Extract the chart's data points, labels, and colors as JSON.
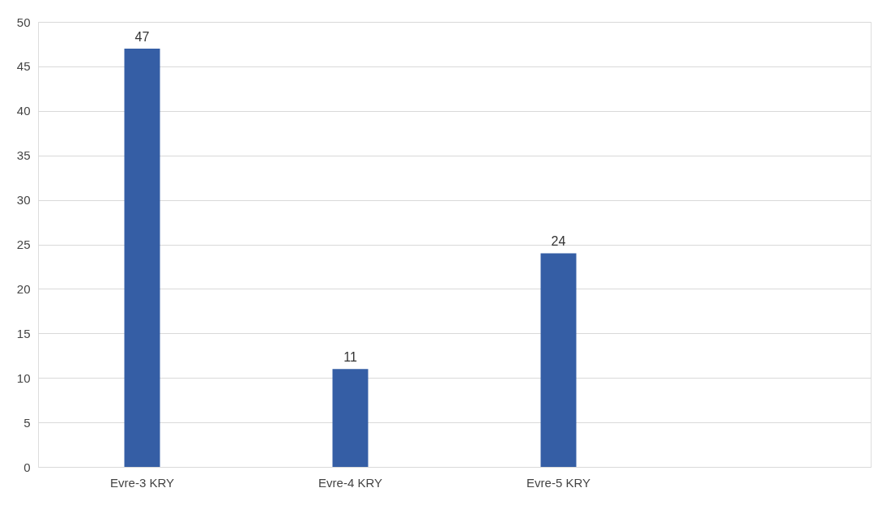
{
  "chart_data": {
    "type": "bar",
    "categories": [
      "Evre-3 KRY",
      "Evre-4 KRY",
      "Evre-5 KRY",
      null
    ],
    "values": [
      47,
      11,
      24,
      null
    ],
    "color": "#355ea5",
    "ylim": [
      0,
      50
    ],
    "yticks": [
      0,
      5,
      10,
      15,
      20,
      25,
      30,
      35,
      40,
      45,
      50
    ],
    "grid": "y",
    "data_labels": true
  }
}
